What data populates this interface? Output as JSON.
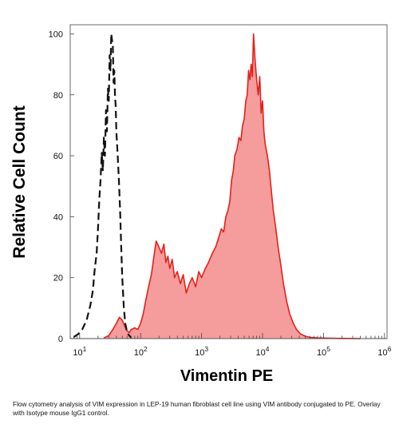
{
  "chart_data": {
    "type": "area",
    "title": "",
    "xlabel": "Vimentin PE",
    "ylabel": "Relative Cell Count",
    "x_scale": "log",
    "xlim": [
      7,
      1100000
    ],
    "ylim": [
      0,
      103
    ],
    "grid": false,
    "x_ticks": [
      {
        "value": 10,
        "base": "10",
        "exp": "1"
      },
      {
        "value": 100,
        "base": "10",
        "exp": "2"
      },
      {
        "value": 1000,
        "base": "10",
        "exp": "3"
      },
      {
        "value": 10000,
        "base": "10",
        "exp": "4"
      },
      {
        "value": 100000,
        "base": "10",
        "exp": "5"
      },
      {
        "value": 1000000,
        "base": "10",
        "exp": "6"
      }
    ],
    "y_ticks": [
      {
        "value": 0,
        "label": "0"
      },
      {
        "value": 20,
        "label": "20"
      },
      {
        "value": 40,
        "label": "40"
      },
      {
        "value": 60,
        "label": "60"
      },
      {
        "value": 80,
        "label": "80"
      },
      {
        "value": 100,
        "label": "100"
      }
    ],
    "series": [
      {
        "role": "isotype-control",
        "style": "dashed-line",
        "color": "#111111",
        "x": [
          8,
          9.5,
          11,
          13,
          15,
          16.5,
          17.5,
          19,
          20,
          21,
          22,
          23,
          24,
          25,
          26,
          27,
          28,
          29,
          30,
          31,
          32,
          33,
          34,
          35,
          36,
          37,
          38,
          39,
          40,
          42,
          44,
          46,
          48,
          50,
          53,
          56,
          60,
          65,
          70
        ],
        "y": [
          0.5,
          1.5,
          3,
          6,
          11,
          16,
          22,
          28,
          36,
          46,
          52,
          61,
          55,
          66,
          60,
          75,
          68,
          82,
          78,
          93,
          88,
          100,
          98,
          96,
          84,
          88,
          80,
          76,
          68,
          60,
          52,
          42,
          30,
          20,
          10,
          5,
          2,
          1,
          0.3
        ]
      },
      {
        "role": "VIM-PE",
        "style": "filled",
        "color": "#e32119",
        "fill": "#f59c9c",
        "x": [
          25,
          30,
          35,
          40,
          45,
          50,
          55,
          60,
          65,
          70,
          80,
          90,
          100,
          110,
          120,
          135,
          150,
          165,
          180,
          200,
          220,
          240,
          260,
          280,
          300,
          330,
          360,
          400,
          450,
          500,
          560,
          630,
          700,
          800,
          900,
          1000,
          1150,
          1300,
          1500,
          1700,
          1900,
          2100,
          2300,
          2500,
          2700,
          2900,
          3100,
          3300,
          3500,
          3800,
          4100,
          4400,
          4700,
          5000,
          5300,
          5600,
          5900,
          6200,
          6500,
          6800,
          7100,
          7500,
          8000,
          8500,
          9000,
          9500,
          10000,
          10500,
          11000,
          12000,
          13000,
          14000,
          15000,
          16500,
          18000,
          20000,
          22000,
          25000,
          28000,
          32000,
          36000,
          42000,
          50000,
          60000,
          80000,
          120000,
          200000,
          400000
        ],
        "y": [
          0.2,
          1,
          3,
          5,
          7,
          6,
          4,
          2.5,
          2,
          3,
          3.5,
          3,
          5,
          8,
          12,
          17,
          21,
          27,
          32,
          30,
          28,
          31,
          25,
          27,
          23,
          26,
          20,
          22,
          18,
          21,
          15,
          18,
          20,
          17,
          22,
          20,
          23,
          25,
          28,
          30,
          33,
          36,
          35,
          40,
          42,
          45,
          52,
          55,
          60,
          62,
          66,
          65,
          70,
          72,
          78,
          80,
          88,
          85,
          90,
          86,
          100,
          92,
          85,
          80,
          86,
          74,
          78,
          68,
          64,
          60,
          55,
          48,
          42,
          36,
          30,
          24,
          18,
          12,
          8,
          5,
          3,
          1.5,
          0.8,
          0.4,
          0.2,
          0.1,
          0.05,
          0
        ]
      }
    ]
  },
  "caption": "Flow cytometry analysis of VIM expression in LEP-19 human fibroblast cell line using VIM antibody conjugated to PE. Overlay with Isotype mouse IgG1 control."
}
